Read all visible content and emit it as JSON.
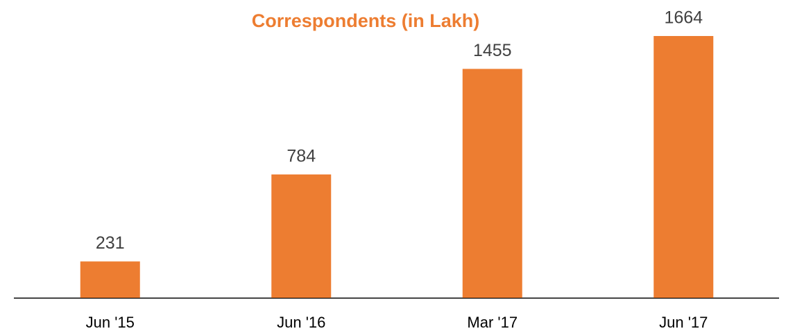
{
  "chart_data": {
    "type": "bar",
    "title": "Correspondents (in Lakh)",
    "categories": [
      "Jun '15",
      "Jun '16",
      "Mar '17",
      "Jun '17"
    ],
    "values": [
      231,
      784,
      1455,
      1664
    ],
    "color": "#ed7d31"
  }
}
